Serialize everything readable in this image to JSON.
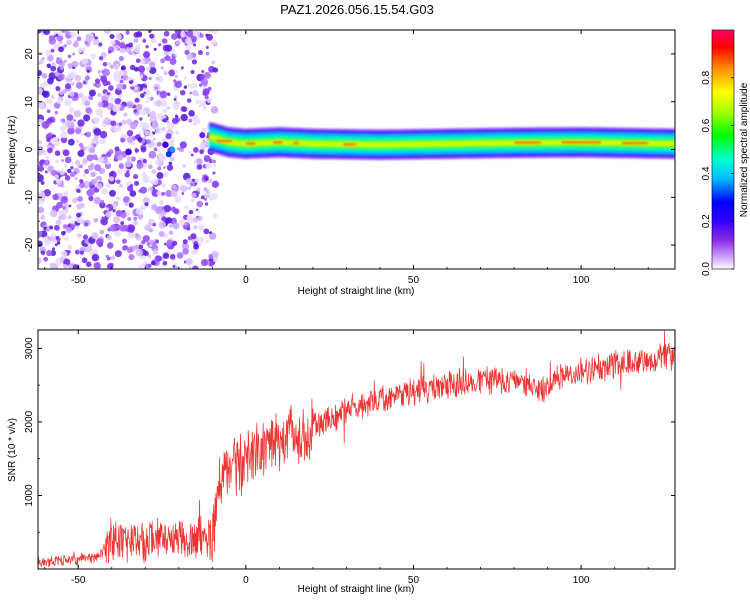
{
  "chart_data": [
    {
      "type": "heatmap",
      "title": "PAZ1.2026.056.15.54.G03",
      "xlabel": "Height of straight line (km)",
      "ylabel": "Frequency (Hz)",
      "xlim": [
        -62,
        128
      ],
      "ylim": [
        -25,
        25
      ],
      "xticks": [
        -50,
        0,
        50,
        100
      ],
      "yticks": [
        -20,
        -10,
        0,
        10,
        20
      ],
      "colorbar": {
        "label": "Normalized spectral amplitude",
        "range": [
          0,
          1
        ],
        "ticks": [
          0.0,
          0.2,
          0.4,
          0.6,
          0.8
        ],
        "tick_labels": [
          "0.0",
          "0.2",
          "0.4",
          "0.6",
          "0.8"
        ],
        "colors": [
          "#ffffff",
          "#d9b3ff",
          "#8a2be2",
          "#3300ff",
          "#0000ff",
          "#00bfff",
          "#00ffcc",
          "#00ff00",
          "#aaff00",
          "#ffff00",
          "#ff8c00",
          "#ff0000",
          "#ff0066"
        ]
      },
      "noise_region_km": [
        -62,
        -11
      ],
      "signal_band": {
        "start_km": -11,
        "end_km": 128,
        "center_freq_hz": [
          {
            "x": -10,
            "y": 2.5
          },
          {
            "x": -5,
            "y": 1.5
          },
          {
            "x": 0,
            "y": 1.2
          },
          {
            "x": 10,
            "y": 1.5
          },
          {
            "x": 20,
            "y": 1.2
          },
          {
            "x": 40,
            "y": 1.0
          },
          {
            "x": 60,
            "y": 1.2
          },
          {
            "x": 80,
            "y": 1.4
          },
          {
            "x": 100,
            "y": 1.5
          },
          {
            "x": 128,
            "y": 1.2
          }
        ]
      }
    },
    {
      "type": "line",
      "xlabel": "Height of straight line (km)",
      "ylabel": "SNR (10 * v/v)",
      "xlim": [
        -62,
        128
      ],
      "ylim": [
        0,
        3250
      ],
      "xticks": [
        -50,
        0,
        50,
        100
      ],
      "yticks": [
        1000,
        2000,
        3000
      ],
      "color": "#ee3333",
      "series": [
        {
          "name": "SNR",
          "x": [
            -62,
            -55,
            -50,
            -45,
            -42,
            -40,
            -35,
            -30,
            -25,
            -20,
            -15,
            -12,
            -10,
            -8,
            -5,
            -2,
            0,
            2,
            5,
            10,
            15,
            20,
            25,
            30,
            35,
            40,
            45,
            50,
            55,
            60,
            65,
            70,
            75,
            80,
            85,
            90,
            95,
            100,
            105,
            110,
            115,
            120,
            125,
            128
          ],
          "y": [
            100,
            110,
            130,
            150,
            260,
            400,
            360,
            380,
            430,
            390,
            420,
            450,
            350,
            1100,
            1350,
            1450,
            1550,
            1600,
            1650,
            1720,
            1780,
            1950,
            2050,
            2150,
            2250,
            2300,
            2350,
            2400,
            2430,
            2480,
            2550,
            2580,
            2560,
            2550,
            2520,
            2450,
            2650,
            2700,
            2720,
            2780,
            2800,
            2850,
            2880,
            2900
          ]
        }
      ]
    }
  ]
}
